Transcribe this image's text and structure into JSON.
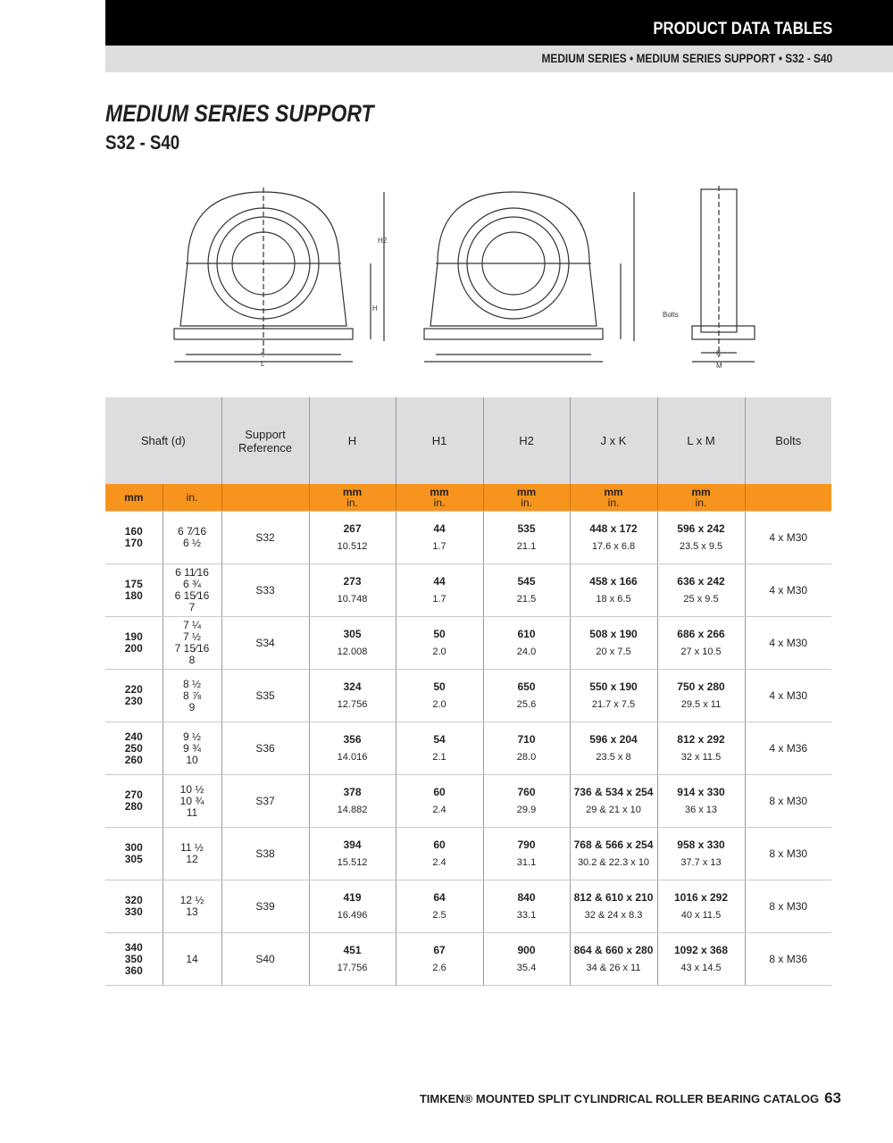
{
  "header": {
    "section": "PRODUCT DATA TABLES",
    "breadcrumb": "MEDIUM SERIES • MEDIUM SERIES SUPPORT • S32 - S40"
  },
  "title": "MEDIUM SERIES SUPPORT",
  "subtitle": "S32 - S40",
  "drawing_labels": {
    "h2": "H2",
    "h": "H",
    "h1": "H1",
    "j": "J",
    "l": "L",
    "k": "K",
    "m": "M",
    "bolts": "Bolts"
  },
  "table": {
    "headers": [
      "Shaft (d)",
      "Support Reference",
      "H",
      "H1",
      "H2",
      "J x K",
      "L x M",
      "Bolts"
    ],
    "units": [
      "mm",
      "in.",
      "",
      "mm in.",
      "mm in.",
      "mm in.",
      "mm in.",
      "mm in.",
      ""
    ],
    "rows": [
      {
        "mm": "160\n170",
        "in": "6 7⁄16\n6 ½",
        "ref": "S32",
        "H": [
          "267",
          "10.512"
        ],
        "H1": [
          "44",
          "1.7"
        ],
        "H2": [
          "535",
          "21.1"
        ],
        "JK": [
          "448 x 172",
          "17.6 x 6.8"
        ],
        "LM": [
          "596 x 242",
          "23.5 x 9.5"
        ],
        "bolts": "4 x M30"
      },
      {
        "mm": "175\n180",
        "in": "6 11⁄16\n6 ¾\n6 15⁄16\n7",
        "ref": "S33",
        "H": [
          "273",
          "10.748"
        ],
        "H1": [
          "44",
          "1.7"
        ],
        "H2": [
          "545",
          "21.5"
        ],
        "JK": [
          "458 x 166",
          "18 x 6.5"
        ],
        "LM": [
          "636 x 242",
          "25 x 9.5"
        ],
        "bolts": "4 x M30"
      },
      {
        "mm": "190\n200",
        "in": "7 ¼\n7 ½\n7 15⁄16\n8",
        "ref": "S34",
        "H": [
          "305",
          "12.008"
        ],
        "H1": [
          "50",
          "2.0"
        ],
        "H2": [
          "610",
          "24.0"
        ],
        "JK": [
          "508 x 190",
          "20 x 7.5"
        ],
        "LM": [
          "686 x 266",
          "27 x 10.5"
        ],
        "bolts": "4 x M30"
      },
      {
        "mm": "220\n230",
        "in": "8 ½\n8 ⅞\n9",
        "ref": "S35",
        "H": [
          "324",
          "12.756"
        ],
        "H1": [
          "50",
          "2.0"
        ],
        "H2": [
          "650",
          "25.6"
        ],
        "JK": [
          "550 x 190",
          "21.7 x 7.5"
        ],
        "LM": [
          "750 x 280",
          "29.5 x 11"
        ],
        "bolts": "4 x M30"
      },
      {
        "mm": "240\n250\n260",
        "in": "9 ½\n9 ¾\n10",
        "ref": "S36",
        "H": [
          "356",
          "14.016"
        ],
        "H1": [
          "54",
          "2.1"
        ],
        "H2": [
          "710",
          "28.0"
        ],
        "JK": [
          "596 x 204",
          "23.5 x 8"
        ],
        "LM": [
          "812 x 292",
          "32 x 11.5"
        ],
        "bolts": "4 x M36"
      },
      {
        "mm": "270\n280",
        "in": "10 ½\n10 ¾\n11",
        "ref": "S37",
        "H": [
          "378",
          "14.882"
        ],
        "H1": [
          "60",
          "2.4"
        ],
        "H2": [
          "760",
          "29.9"
        ],
        "JK": [
          "736 & 534 x 254",
          "29 & 21 x 10"
        ],
        "LM": [
          "914 x 330",
          "36 x 13"
        ],
        "bolts": "8 x M30"
      },
      {
        "mm": "300\n305",
        "in": "11 ½\n12",
        "ref": "S38",
        "H": [
          "394",
          "15.512"
        ],
        "H1": [
          "60",
          "2.4"
        ],
        "H2": [
          "790",
          "31.1"
        ],
        "JK": [
          "768 & 566 x 254",
          "30.2 & 22.3 x 10"
        ],
        "LM": [
          "958 x 330",
          "37.7 x 13"
        ],
        "bolts": "8 x M30"
      },
      {
        "mm": "320\n330",
        "in": "12 ½\n13",
        "ref": "S39",
        "H": [
          "419",
          "16.496"
        ],
        "H1": [
          "64",
          "2.5"
        ],
        "H2": [
          "840",
          "33.1"
        ],
        "JK": [
          "812 & 610 x 210",
          "32 & 24 x 8.3"
        ],
        "LM": [
          "1016 x 292",
          "40 x 11.5"
        ],
        "bolts": "8 x M30"
      },
      {
        "mm": "340\n350\n360",
        "in": "14",
        "ref": "S40",
        "H": [
          "451",
          "17.756"
        ],
        "H1": [
          "67",
          "2.6"
        ],
        "H2": [
          "900",
          "35.4"
        ],
        "JK": [
          "864 & 660 x 280",
          "34 & 26 x 11"
        ],
        "LM": [
          "1092 x 368",
          "43 x 14.5"
        ],
        "bolts": "8 x M36"
      }
    ]
  },
  "footer": {
    "text": "TIMKEN® MOUNTED SPLIT CYLINDRICAL ROLLER BEARING CATALOG",
    "page": "63"
  },
  "colors": {
    "orange": "#f7941d",
    "gray": "#dcddde",
    "black": "#000000"
  }
}
